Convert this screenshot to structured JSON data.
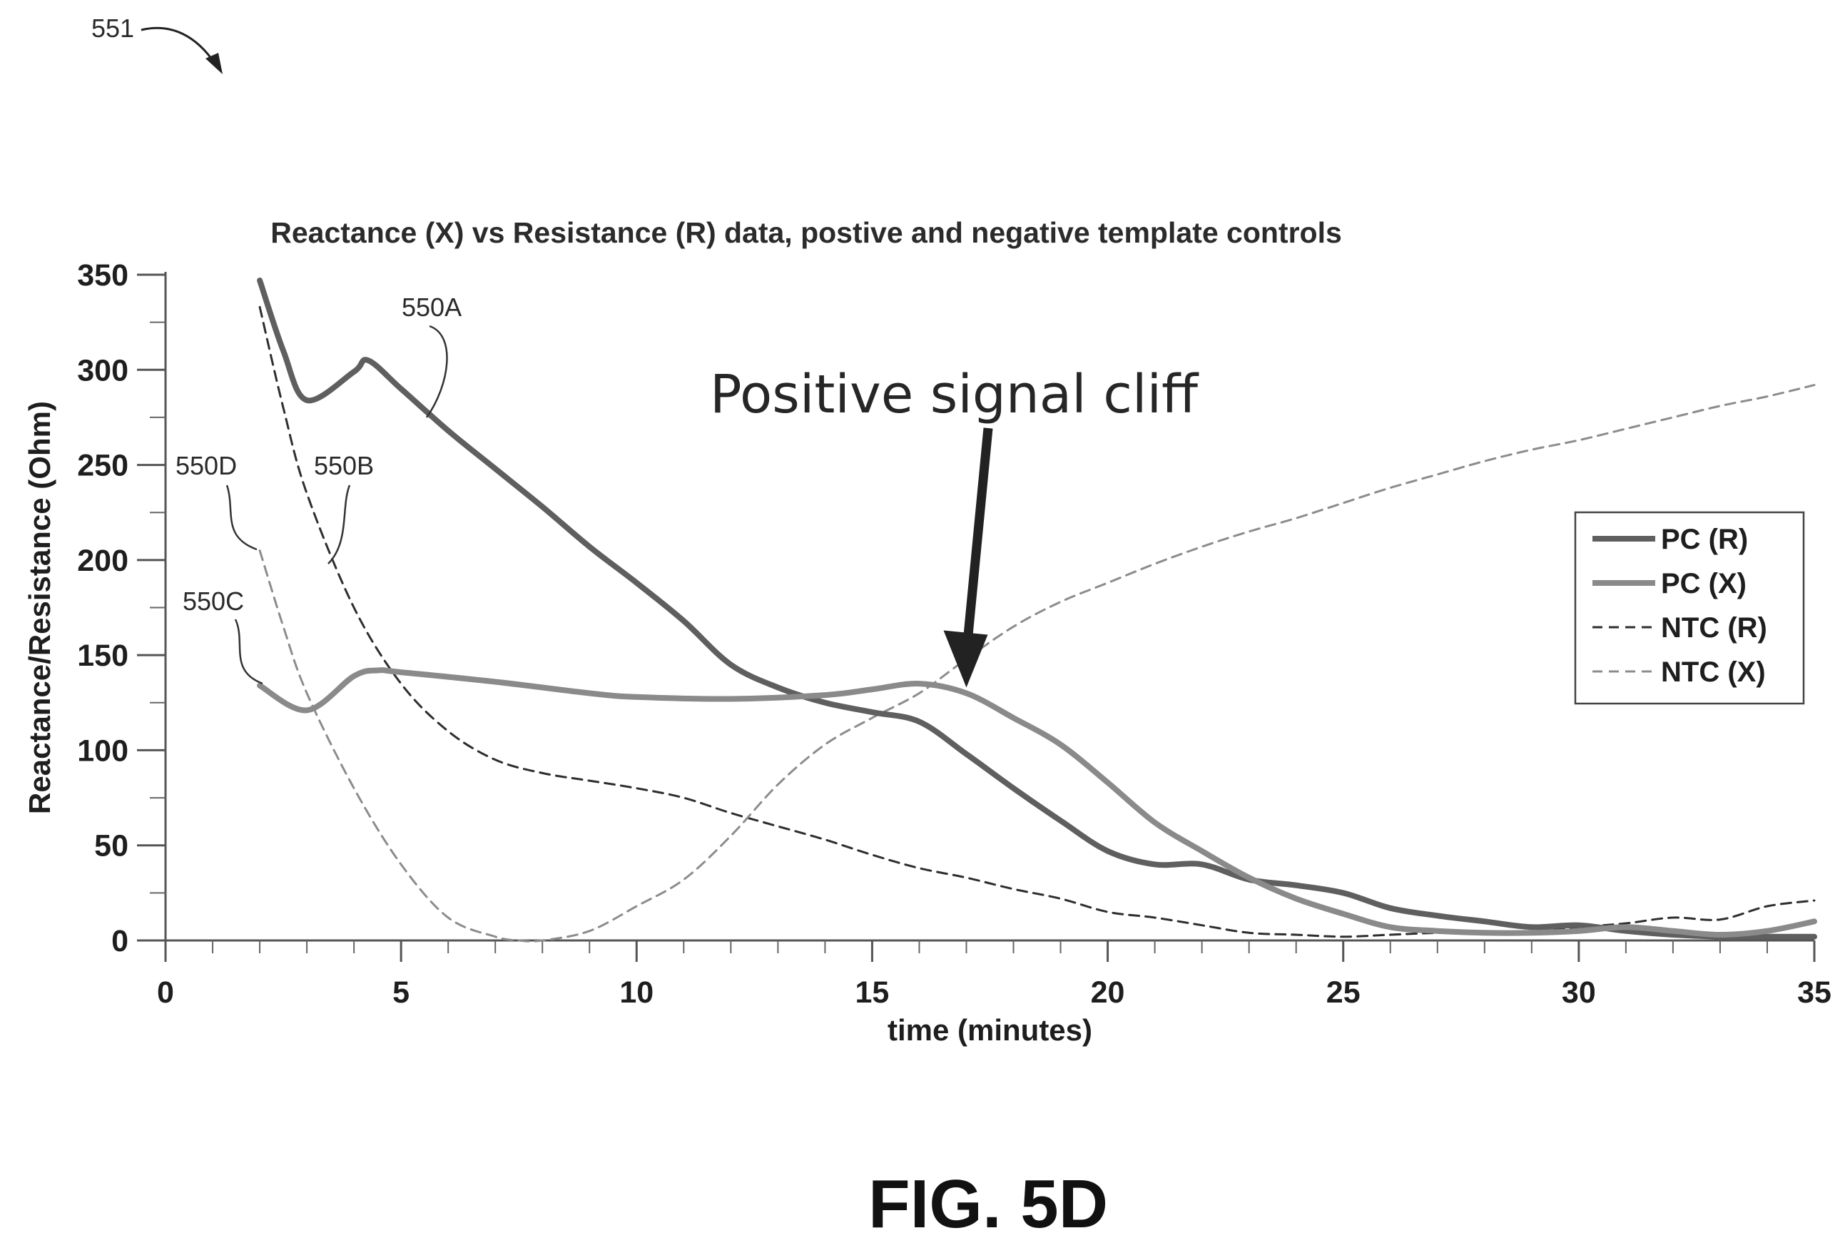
{
  "figure": {
    "ref_number": "551",
    "caption": "FIG. 5D"
  },
  "chart_data": {
    "type": "line",
    "title": "Reactance (X) vs Resistance (R) data, postive and negative template controls",
    "xlabel": "time (minutes)",
    "ylabel": "Reactance/Resistance (Ohm)",
    "xlim": [
      0,
      35
    ],
    "ylim": [
      0,
      350
    ],
    "x_ticks": [
      0,
      5,
      10,
      15,
      20,
      25,
      30,
      35
    ],
    "y_ticks": [
      0,
      50,
      100,
      150,
      200,
      250,
      300,
      350
    ],
    "grid": false,
    "legend_position": "right",
    "annotation": "Positive signal cliff",
    "annotation_point": [
      17,
      133
    ],
    "series": [
      {
        "name": "PC (R)",
        "ref_label": "550A",
        "style": "solid-thick",
        "color": "#5f5f5f",
        "x": [
          2,
          2.5,
          3,
          4,
          4.3,
          5,
          6,
          7,
          8,
          9,
          10,
          11,
          12,
          13,
          14,
          15,
          16,
          17,
          18,
          19,
          20,
          21,
          22,
          23,
          24,
          25,
          26,
          27,
          28,
          29,
          30,
          31,
          32,
          33,
          34,
          35
        ],
        "y": [
          347,
          310,
          284,
          299,
          305,
          290,
          268,
          248,
          228,
          207,
          188,
          168,
          145,
          133,
          125,
          120,
          115,
          98,
          80,
          63,
          47,
          40,
          40,
          32,
          29,
          25,
          17,
          13,
          10,
          7,
          8,
          5,
          3,
          2,
          2,
          2
        ]
      },
      {
        "name": "PC (X)",
        "ref_label": "550C",
        "style": "solid-thick",
        "color": "#8a8a8a",
        "x": [
          2,
          3,
          4,
          4.5,
          5,
          7,
          9,
          10,
          12,
          14,
          15,
          16,
          17,
          18,
          19,
          20,
          21,
          22,
          23,
          24,
          25,
          26,
          27,
          28,
          29,
          30,
          31,
          32,
          33,
          34,
          35
        ],
        "y": [
          134,
          121,
          139,
          142,
          141,
          136,
          130,
          128,
          127,
          129,
          132,
          135,
          130,
          117,
          103,
          83,
          62,
          47,
          33,
          22,
          14,
          7,
          5,
          4,
          4,
          5,
          7,
          5,
          3,
          5,
          10
        ]
      },
      {
        "name": "NTC (R)",
        "ref_label": "550B",
        "style": "dashed",
        "color": "#2e2e2e",
        "x": [
          2,
          2.5,
          3,
          4,
          5,
          6,
          7,
          8,
          9,
          10,
          11,
          12,
          13,
          14,
          15,
          16,
          17,
          18,
          19,
          20,
          21,
          22,
          23,
          24,
          25,
          26,
          27,
          28,
          29,
          30,
          31,
          32,
          33,
          34,
          35
        ],
        "y": [
          333,
          280,
          235,
          175,
          135,
          110,
          95,
          88,
          84,
          80,
          75,
          67,
          60,
          53,
          45,
          38,
          33,
          27,
          22,
          15,
          12,
          8,
          4,
          3,
          2,
          3,
          4,
          4,
          5,
          7,
          9,
          12,
          11,
          18,
          21
        ]
      },
      {
        "name": "NTC (X)",
        "ref_label": "550D",
        "style": "dashed",
        "color": "#8c8c8c",
        "x": [
          2,
          2.5,
          3,
          4,
          5,
          6,
          7,
          7.5,
          8,
          9,
          10,
          11,
          12,
          13,
          14,
          15,
          16,
          17,
          18,
          19,
          20,
          21,
          22,
          23,
          24,
          25,
          26,
          27,
          28,
          29,
          30,
          31,
          32,
          33,
          34,
          35
        ],
        "y": [
          205,
          165,
          130,
          80,
          40,
          12,
          2,
          0,
          0,
          5,
          18,
          32,
          55,
          82,
          103,
          117,
          130,
          148,
          165,
          178,
          188,
          198,
          207,
          215,
          222,
          230,
          238,
          245,
          252,
          258,
          263,
          269,
          275,
          281,
          286,
          292
        ]
      }
    ]
  }
}
